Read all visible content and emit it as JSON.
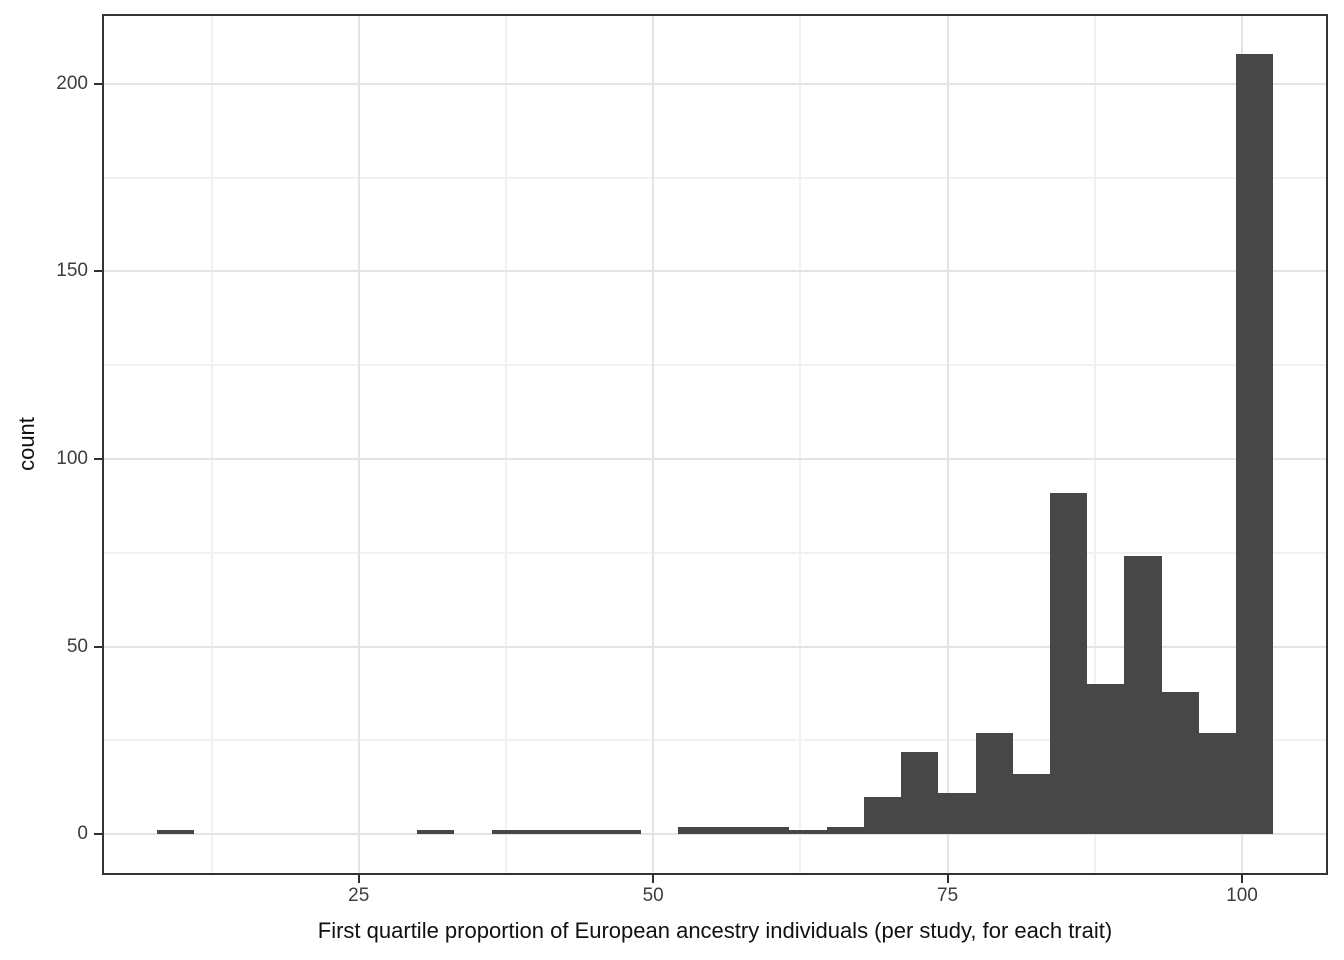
{
  "figure": {
    "x_axis_title": "First quartile proportion of European ancestry individuals (per study, for each trait)",
    "y_axis_title": "count"
  },
  "chart_data": {
    "type": "bar",
    "subtype": "histogram",
    "title": "",
    "xlabel": "First quartile proportion of European ancestry individuals (per study, for each trait)",
    "ylabel": "count",
    "xlim": [
      3.2,
      107.3
    ],
    "ylim": [
      -10.9,
      218.6
    ],
    "x_major_ticks": [
      25,
      50,
      75,
      100
    ],
    "x_minor_gridlines": [
      12.5,
      37.5,
      62.5,
      87.5
    ],
    "y_major_ticks": [
      0,
      50,
      100,
      150,
      200
    ],
    "y_minor_gridlines": [
      25,
      75,
      125,
      175
    ],
    "grid": true,
    "legend_position": "none",
    "bin_width": 3.16,
    "bin_edges": [
      7.85,
      11.01,
      14.17,
      17.33,
      20.49,
      23.65,
      26.81,
      29.97,
      33.13,
      36.29,
      39.45,
      42.61,
      45.77,
      48.93,
      52.09,
      55.25,
      58.41,
      61.57,
      64.73,
      67.89,
      71.05,
      74.21,
      77.37,
      80.53,
      83.69,
      86.85,
      90.01,
      93.17,
      96.33,
      99.49,
      102.65
    ],
    "bin_counts": [
      1,
      0,
      0,
      0,
      0,
      0,
      0,
      1,
      0,
      1,
      1,
      1,
      1,
      0,
      2,
      2,
      2,
      1,
      2,
      10,
      22,
      11,
      27,
      16,
      91,
      40,
      74,
      38,
      27,
      208
    ],
    "total_count": 579,
    "colors": {
      "bar_fill": "#474747",
      "panel_border": "#333333",
      "grid_major": "#e4e4e4",
      "grid_minor": "#f1f1f1",
      "tick_mark": "#2f2f2f",
      "tick_label": "#3d3d3d",
      "axis_title": "#111111",
      "background": "#ffffff"
    }
  }
}
